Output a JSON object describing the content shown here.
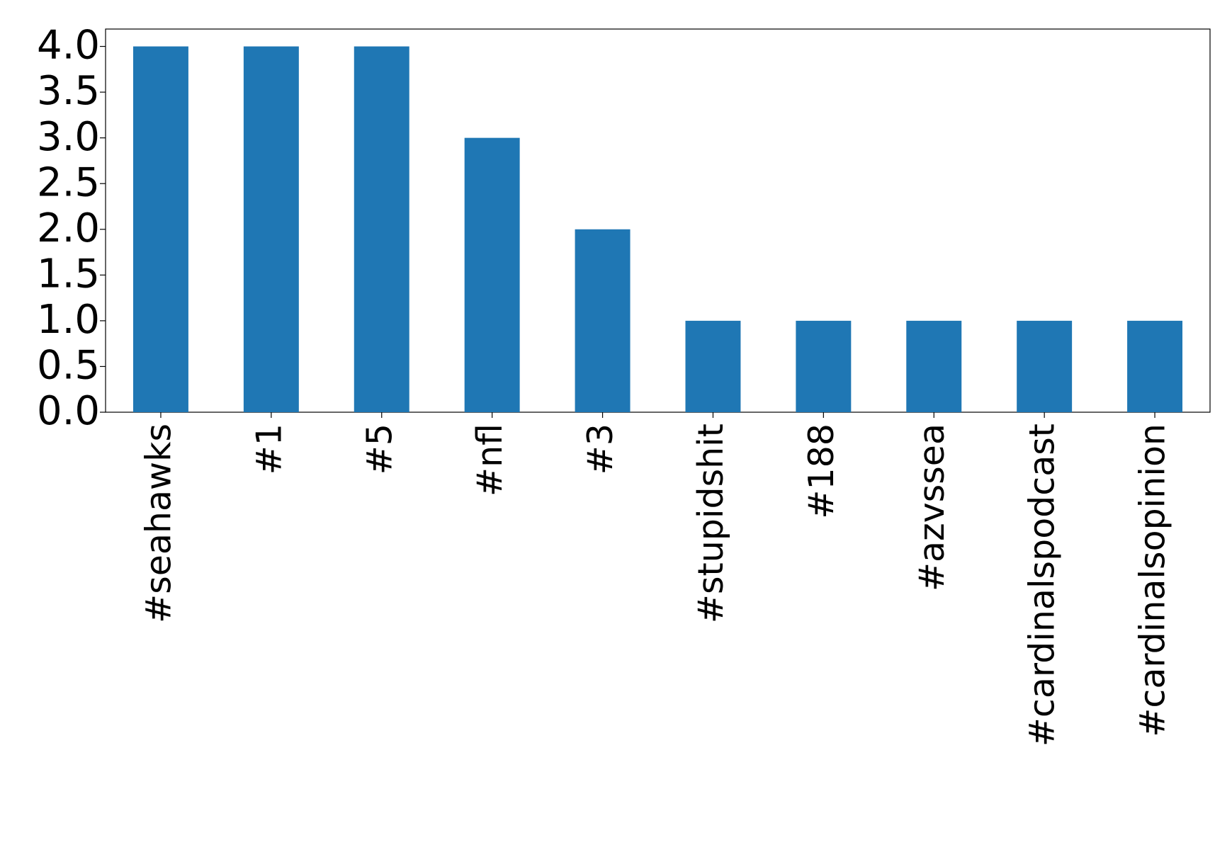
{
  "chart_data": {
    "type": "bar",
    "categories": [
      "#seahawks",
      "#1",
      "#5",
      "#nfl",
      "#3",
      "#stupidshit",
      "#188",
      "#azvssea",
      "#cardinalspodcast",
      "#cardinalsopinion"
    ],
    "values": [
      4,
      4,
      4,
      3,
      2,
      1,
      1,
      1,
      1,
      1
    ],
    "color": "#1f77b4",
    "ylim": [
      0,
      4.19
    ],
    "yticks": [
      {
        "value": 0,
        "label": "0.0"
      },
      {
        "value": 0.5,
        "label": "0.5"
      },
      {
        "value": 1,
        "label": "1.0"
      },
      {
        "value": 1.5,
        "label": "1.5"
      },
      {
        "value": 2,
        "label": "2.0"
      },
      {
        "value": 2.5,
        "label": "2.5"
      },
      {
        "value": 3,
        "label": "3.0"
      },
      {
        "value": 3.5,
        "label": "3.5"
      },
      {
        "value": 4,
        "label": "4.0"
      }
    ],
    "grid": false
  }
}
